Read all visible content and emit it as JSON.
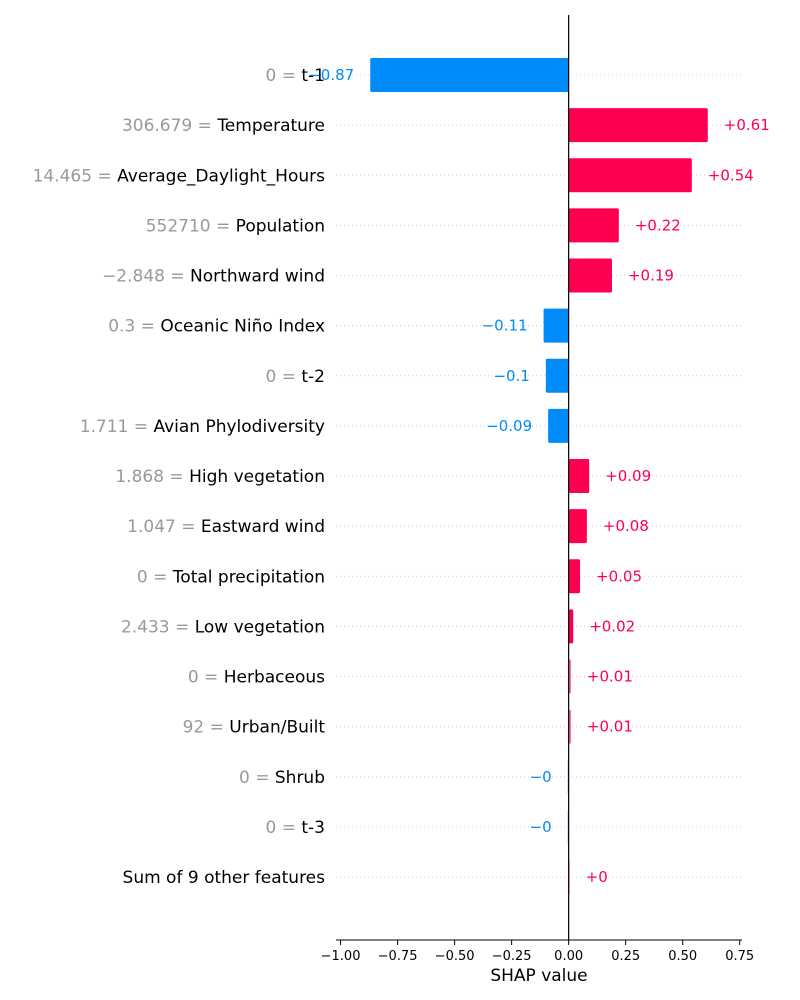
{
  "chart_data": {
    "type": "bar",
    "orientation": "horizontal",
    "features": [
      {
        "value": "0",
        "name": "t-1",
        "shap": -0.87,
        "label": "−0.87"
      },
      {
        "value": "306.679",
        "name": "Temperature",
        "shap": 0.61,
        "label": "+0.61"
      },
      {
        "value": "14.465",
        "name": "Average_Daylight_Hours",
        "shap": 0.54,
        "label": "+0.54"
      },
      {
        "value": "552710",
        "name": "Population",
        "shap": 0.22,
        "label": "+0.22"
      },
      {
        "value": "−2.848",
        "name": "Northward wind",
        "shap": 0.19,
        "label": "+0.19"
      },
      {
        "value": "0.3",
        "name": "Oceanic Niño Index",
        "shap": -0.11,
        "label": "−0.11"
      },
      {
        "value": "0",
        "name": "t-2",
        "shap": -0.1,
        "label": "−0.1"
      },
      {
        "value": "1.711",
        "name": "Avian Phylodiversity",
        "shap": -0.09,
        "label": "−0.09"
      },
      {
        "value": "1.868",
        "name": "High vegetation",
        "shap": 0.09,
        "label": "+0.09"
      },
      {
        "value": "1.047",
        "name": "Eastward wind",
        "shap": 0.08,
        "label": "+0.08"
      },
      {
        "value": "0",
        "name": "Total precipitation",
        "shap": 0.05,
        "label": "+0.05"
      },
      {
        "value": "2.433",
        "name": "Low vegetation",
        "shap": 0.02,
        "label": "+0.02"
      },
      {
        "value": "0",
        "name": "Herbaceous",
        "shap": 0.01,
        "label": "+0.01"
      },
      {
        "value": "92",
        "name": "Urban/Built",
        "shap": 0.01,
        "label": "+0.01"
      },
      {
        "value": "0",
        "name": "Shrub",
        "shap": -0.003,
        "label": "−0"
      },
      {
        "value": "0",
        "name": "t-3",
        "shap": -0.003,
        "label": "−0"
      },
      {
        "value": "",
        "name": "Sum of 9 other features",
        "shap": 0.002,
        "label": "+0"
      }
    ],
    "xticks": [
      -1.0,
      -0.75,
      -0.5,
      -0.25,
      0.0,
      0.25,
      0.5,
      0.75
    ],
    "xtick_labels": [
      "−1.00",
      "−0.75",
      "−0.50",
      "−0.25",
      "0.00",
      "0.25",
      "0.50",
      "0.75"
    ],
    "xlim": [
      -1.02,
      0.76
    ],
    "xlabel": "SHAP value",
    "grid": "dotted horizontal guides per row",
    "colors": {
      "positive": "#ff0051",
      "negative": "#008bfb",
      "zero_line": "#000000",
      "guide": "#cccccc",
      "feature_value": "#999999"
    }
  }
}
